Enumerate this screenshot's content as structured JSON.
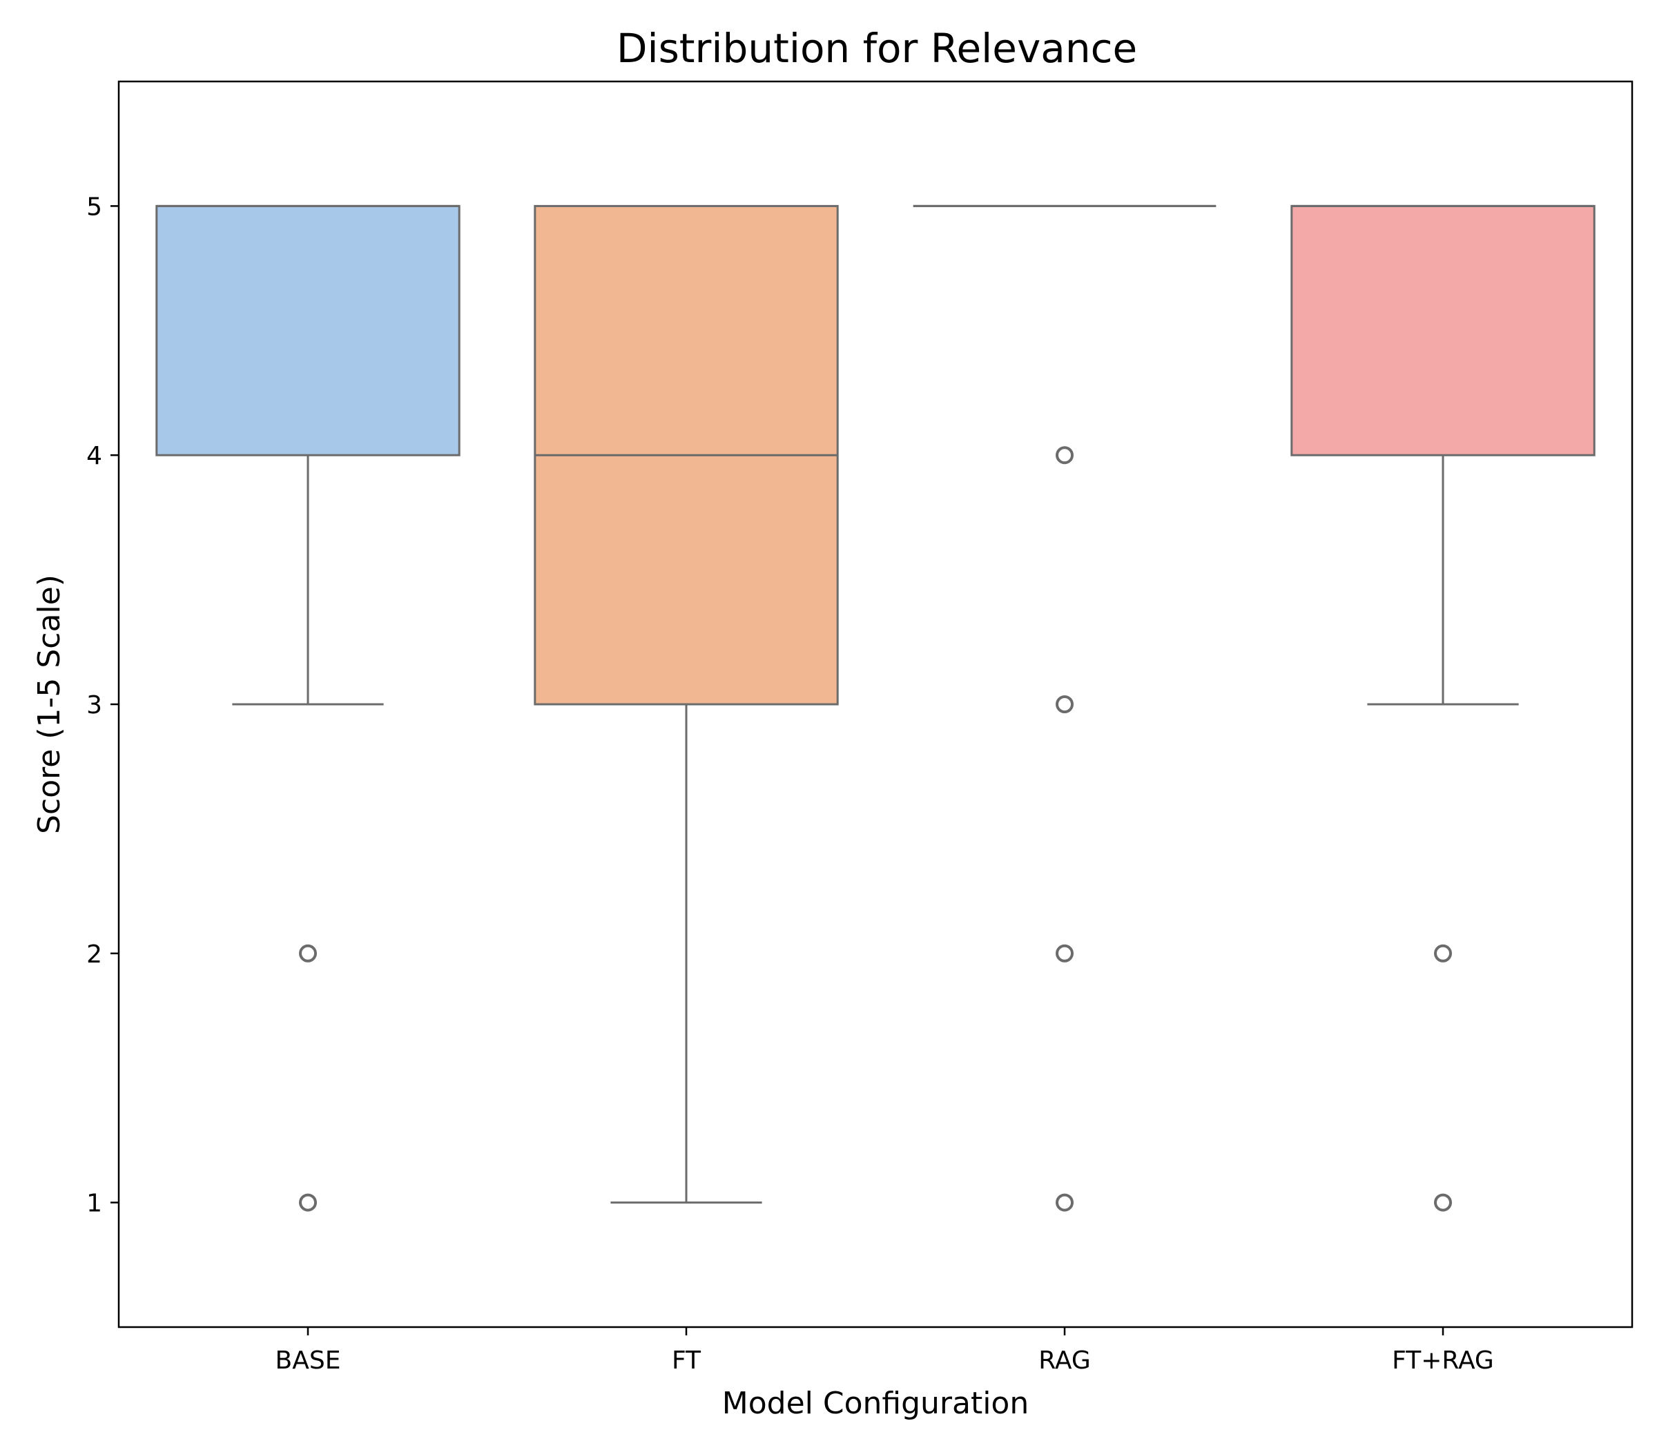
{
  "chart_data": {
    "type": "box",
    "title": "Distribution for Relevance",
    "xlabel": "Model Configuration",
    "ylabel": "Score (1-5 Scale)",
    "ylim": [
      0.5,
      5.5
    ],
    "yticks": [
      1,
      2,
      3,
      4,
      5
    ],
    "categories": [
      "BASE",
      "FT",
      "RAG",
      "FT+RAG"
    ],
    "boxes": [
      {
        "category": "BASE",
        "color": "#a8c8ea",
        "whisker_low": 3,
        "q1": 4,
        "median": 5,
        "q3": 5,
        "whisker_high": 5,
        "outliers": [
          2,
          1
        ]
      },
      {
        "category": "FT",
        "color": "#f0b792",
        "whisker_low": 1,
        "q1": 3,
        "median": 4,
        "q3": 5,
        "whisker_high": 5,
        "outliers": []
      },
      {
        "category": "RAG",
        "color": "#b5e5b3",
        "whisker_low": 5,
        "q1": 5,
        "median": 5,
        "q3": 5,
        "whisker_high": 5,
        "outliers": [
          4,
          3,
          2,
          1
        ]
      },
      {
        "category": "FT+RAG",
        "color": "#f2a9a8",
        "whisker_low": 3,
        "q1": 4,
        "median": 5,
        "q3": 5,
        "whisker_high": 5,
        "outliers": [
          2,
          1
        ]
      }
    ],
    "grid": false,
    "line_color": "#6b6b6b"
  }
}
